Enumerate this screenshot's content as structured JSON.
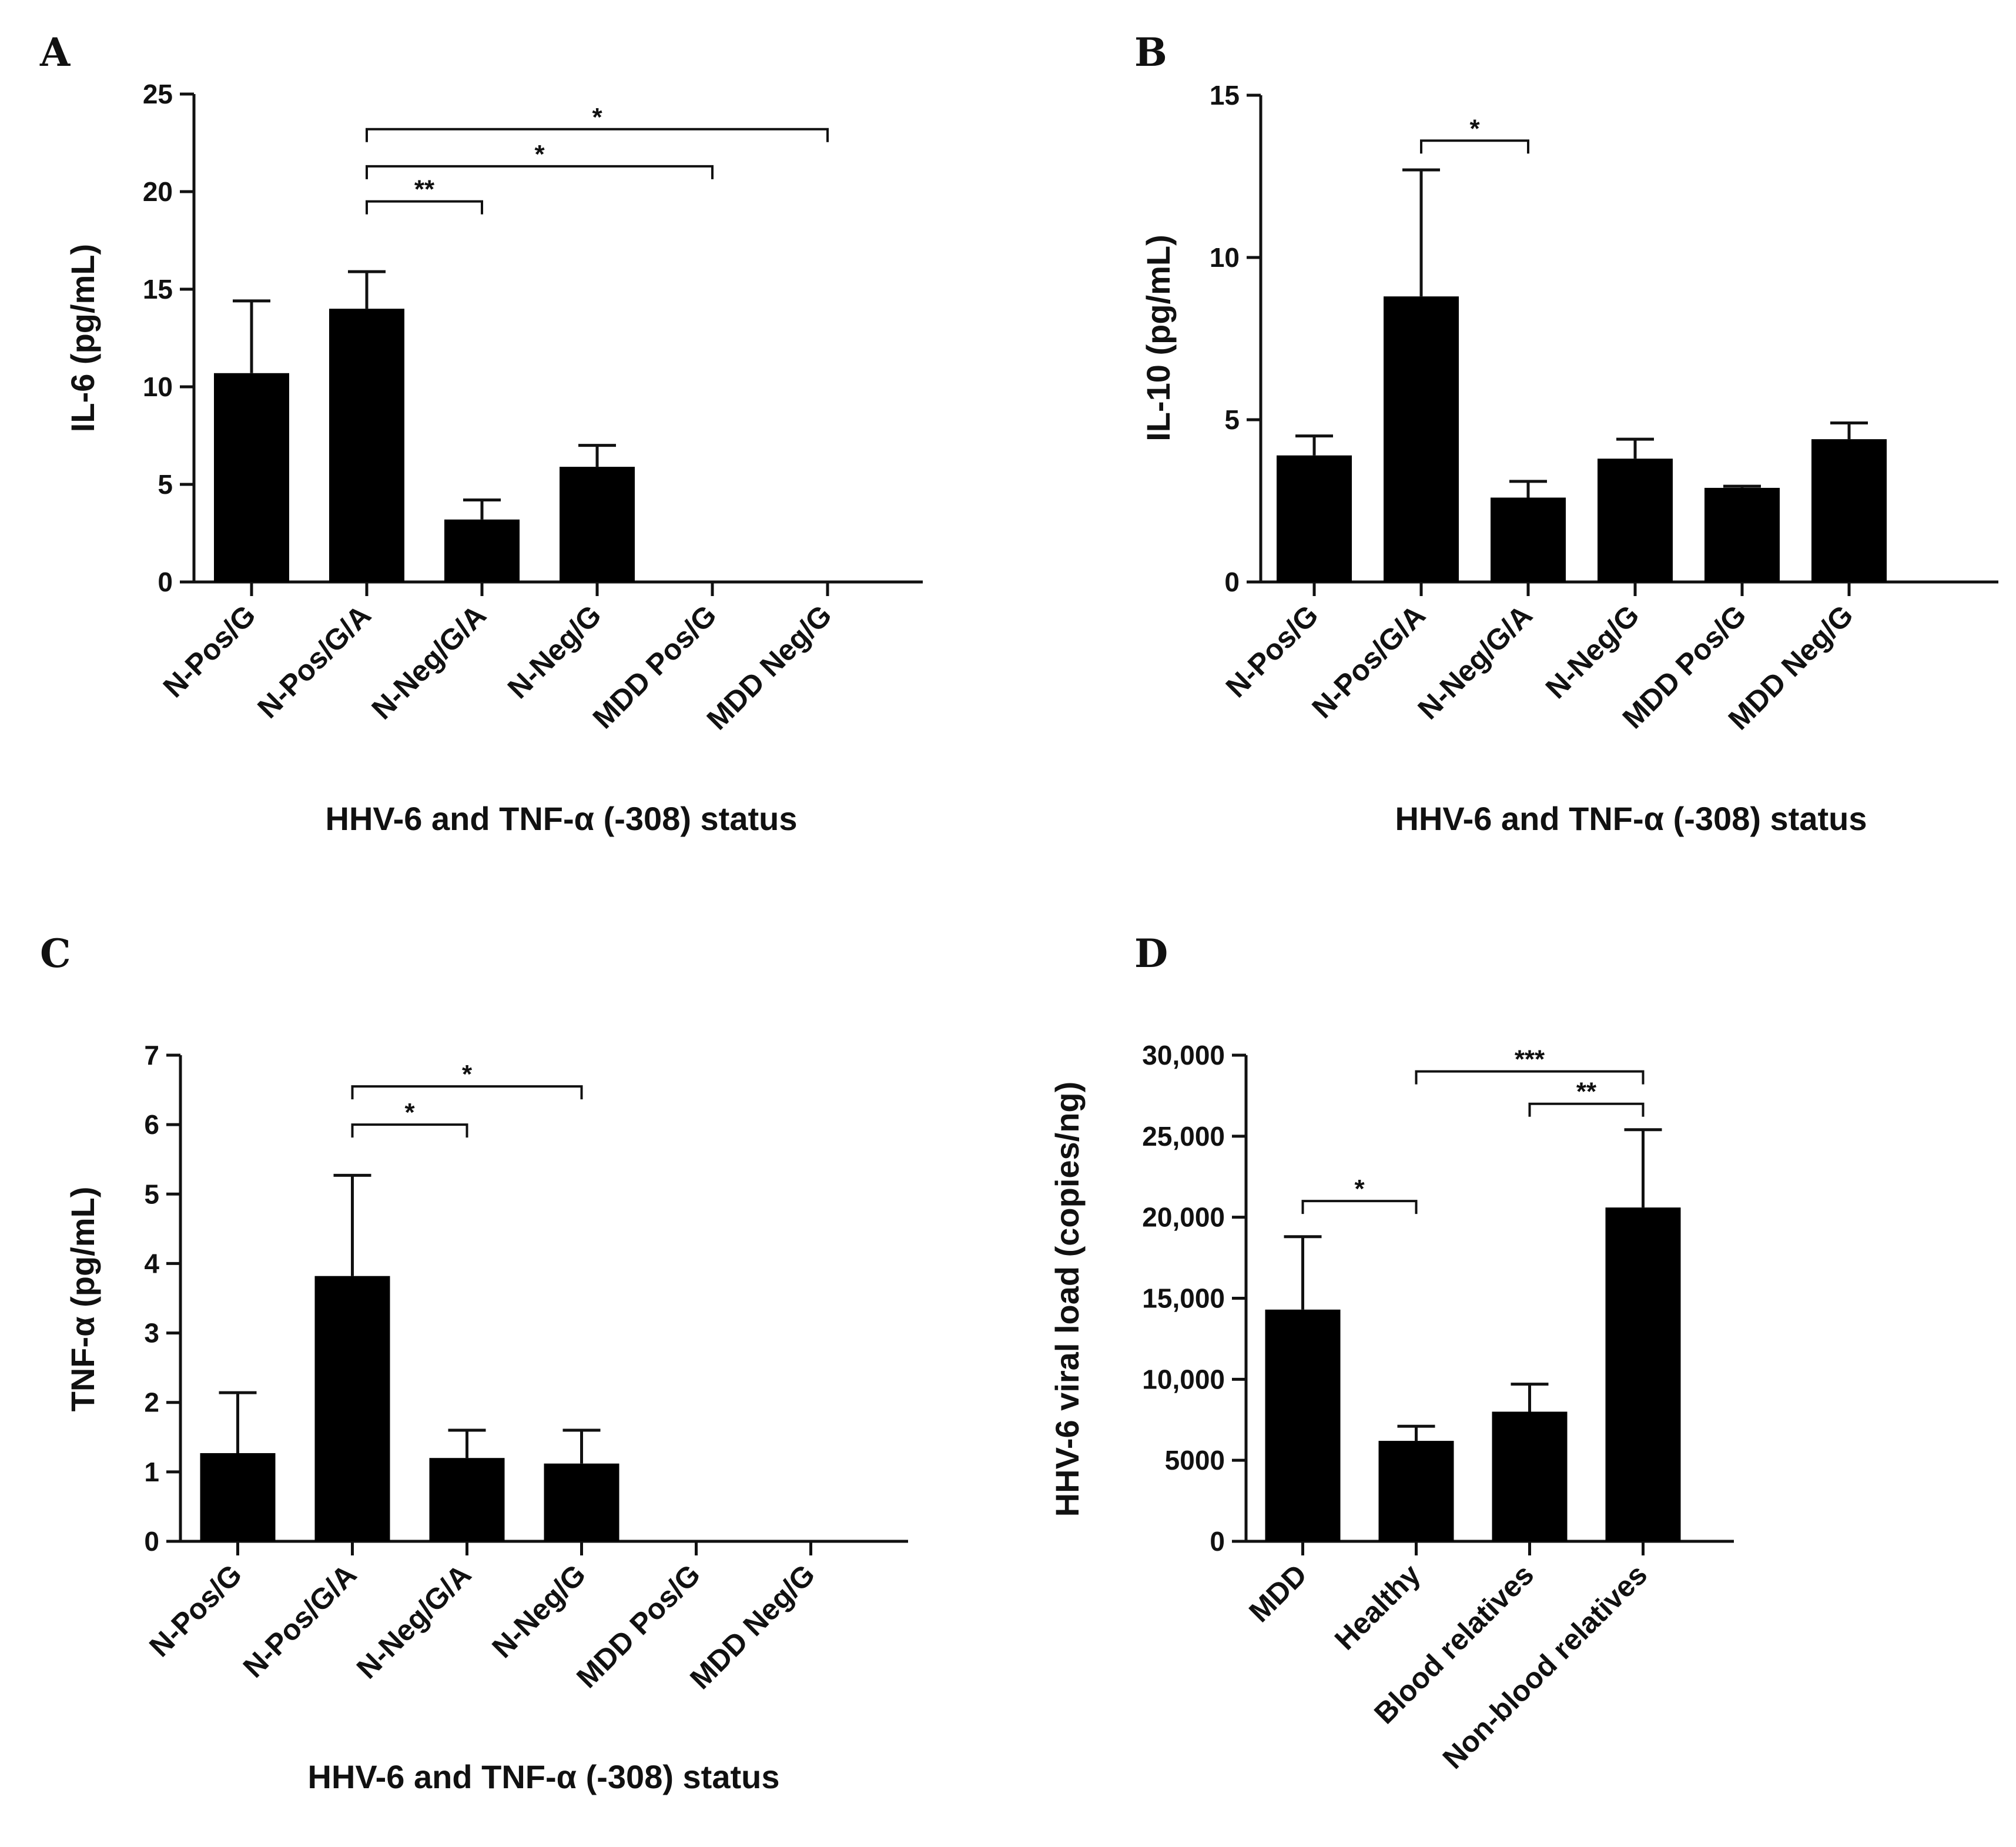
{
  "chart_data": [
    {
      "panel": "A",
      "type": "bar",
      "categories": [
        "N-Pos/G",
        "N-Pos/G/A",
        "N-Neg/G/A",
        "N-Neg/G",
        "MDD Pos/G",
        "MDD Neg/G"
      ],
      "values": [
        10.7,
        14.0,
        3.2,
        5.9,
        0,
        0
      ],
      "errors": [
        3.7,
        1.9,
        1.0,
        1.1,
        0,
        0
      ],
      "ylabel": "IL-6 (pg/mL)",
      "xlabel": "HHV-6 and TNF-α (-308) status",
      "ylim": [
        0,
        25
      ],
      "yticks": [
        0,
        5,
        10,
        15,
        20,
        25
      ],
      "ytick_labels": [
        "0",
        "5",
        "10",
        "15",
        "20",
        "25"
      ],
      "comparisons": [
        {
          "from": 1,
          "to": 5,
          "label": "*",
          "y": 23.2
        },
        {
          "from": 1,
          "to": 4,
          "label": "*",
          "y": 21.3
        },
        {
          "from": 1,
          "to": 2,
          "label": "**",
          "y": 19.5
        }
      ]
    },
    {
      "panel": "B",
      "type": "bar",
      "categories": [
        "N-Pos/G",
        "N-Pos/G/A",
        "N-Neg/G/A",
        "N-Neg/G",
        "MDD Pos/G",
        "MDD Neg/G"
      ],
      "values": [
        3.9,
        8.8,
        2.6,
        3.8,
        2.9,
        4.4
      ],
      "errors": [
        0.6,
        3.9,
        0.5,
        0.6,
        0.05,
        0.5
      ],
      "ylabel": "IL-10 (pg/mL)",
      "xlabel": "HHV-6 and TNF-α (-308) status",
      "ylim": [
        0,
        15
      ],
      "yticks": [
        0,
        5,
        10,
        15
      ],
      "ytick_labels": [
        "0",
        "5",
        "10",
        "15"
      ],
      "comparisons": [
        {
          "from": 1,
          "to": 2,
          "label": "*",
          "y": 13.6
        }
      ]
    },
    {
      "panel": "C",
      "type": "bar",
      "categories": [
        "N-Pos/G",
        "N-Pos/G/A",
        "N-Neg/G/A",
        "N-Neg/G",
        "MDD Pos/G",
        "MDD Neg/G"
      ],
      "values": [
        1.27,
        3.82,
        1.2,
        1.12,
        0,
        0
      ],
      "errors": [
        0.87,
        1.45,
        0.4,
        0.48,
        0,
        0
      ],
      "ylabel": "TNF-α (pg/mL)",
      "xlabel": "HHV-6 and TNF-α (-308) status",
      "ylim": [
        0,
        7
      ],
      "yticks": [
        0,
        1,
        2,
        3,
        4,
        5,
        6,
        7
      ],
      "ytick_labels": [
        "0",
        "1",
        "2",
        "3",
        "4",
        "5",
        "6",
        "7"
      ],
      "comparisons": [
        {
          "from": 1,
          "to": 3,
          "label": "*",
          "y": 6.55
        },
        {
          "from": 1,
          "to": 2,
          "label": "*",
          "y": 6.0
        }
      ]
    },
    {
      "panel": "D",
      "type": "bar",
      "categories": [
        "MDD",
        "Healthy",
        "Blood relatives",
        "Non-blood relatives"
      ],
      "values": [
        14300,
        6200,
        8000,
        20600
      ],
      "errors": [
        4500,
        900,
        1700,
        4800
      ],
      "ylabel": "HHV-6 viral load (copies/ng)",
      "xlabel": "",
      "ylim": [
        0,
        30000
      ],
      "yticks": [
        0,
        5000,
        10000,
        15000,
        20000,
        25000,
        30000
      ],
      "ytick_labels": [
        "0",
        "5000",
        "10,000",
        "15,000",
        "20,000",
        "25,000",
        "30,000"
      ],
      "comparisons": [
        {
          "from": 1,
          "to": 3,
          "label": "***",
          "y": 29000
        },
        {
          "from": 2,
          "to": 3,
          "label": "**",
          "y": 27000
        },
        {
          "from": 0,
          "to": 1,
          "label": "*",
          "y": 21000
        }
      ]
    }
  ]
}
